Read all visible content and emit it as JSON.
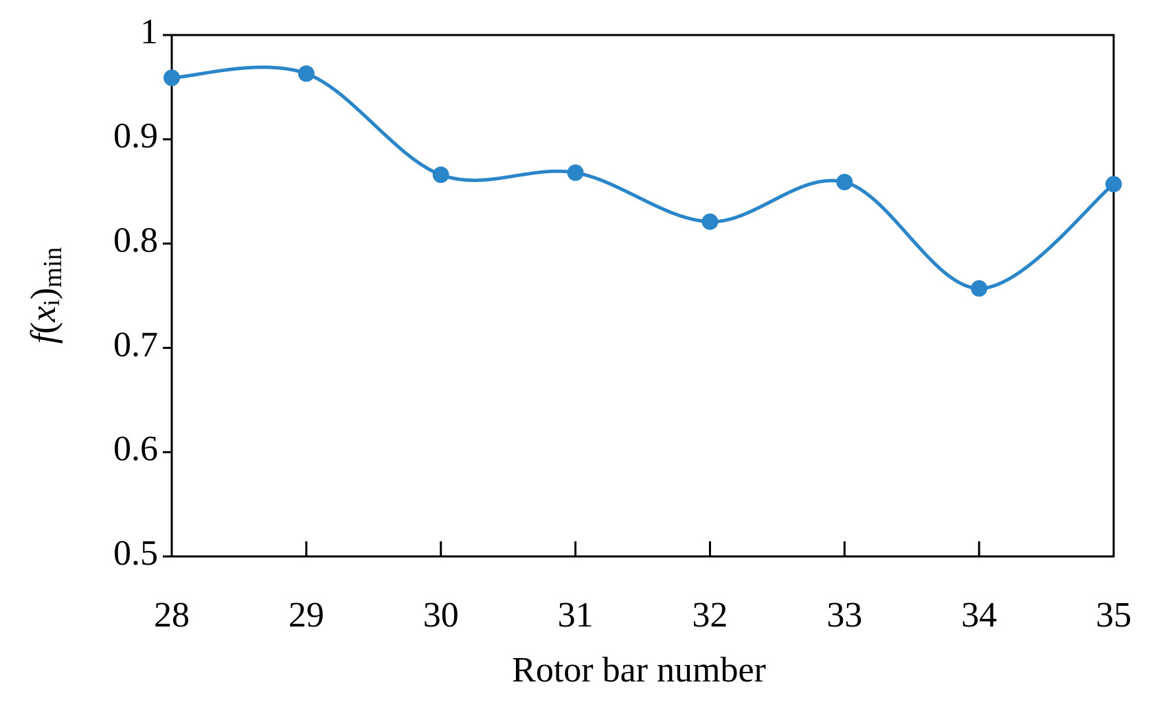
{
  "chart_data": {
    "type": "line",
    "x_label": "Rotor bar number",
    "y_label_parts": [
      "f",
      "(",
      "x",
      "i",
      ")",
      "min"
    ],
    "x": [
      28,
      29,
      30,
      31,
      32,
      33,
      34,
      35
    ],
    "series": [
      {
        "color": "#2a86c8",
        "values": [
          0.959,
          0.963,
          0.866,
          0.868,
          0.821,
          0.859,
          0.757,
          0.857
        ]
      }
    ],
    "xlim": [
      28,
      35
    ],
    "xticks": [
      28,
      29,
      30,
      31,
      32,
      33,
      34,
      35
    ],
    "ylim": [
      0.5,
      1
    ],
    "yticks": [
      0.5,
      0.6,
      0.7,
      0.8,
      0.9,
      1
    ],
    "smooth": true,
    "markers": true
  }
}
